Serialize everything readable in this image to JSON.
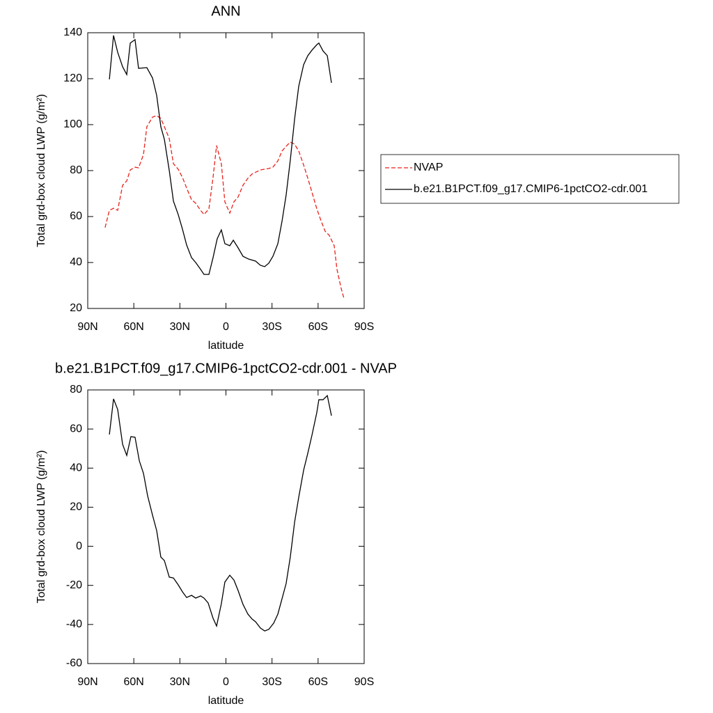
{
  "chart_data": [
    {
      "type": "line",
      "title": "ANN",
      "xlabel": "latitude",
      "ylabel": "Total grd-box cloud LWP (g/m²)",
      "xlim": [
        90,
        -90
      ],
      "ylim": [
        20,
        140
      ],
      "xticks": [
        {
          "value": 90,
          "label": "90N"
        },
        {
          "value": 60,
          "label": "60N"
        },
        {
          "value": 30,
          "label": "30N"
        },
        0,
        {
          "value": -30,
          "label": "30S"
        },
        {
          "value": -60,
          "label": "60S"
        },
        {
          "value": -90,
          "label": "90S"
        }
      ],
      "yticks": [
        20,
        40,
        60,
        80,
        100,
        120,
        140
      ],
      "legend": "right",
      "series": [
        {
          "name": "NVAP",
          "color": "#e8221b",
          "line_style": "dashed",
          "x": [
            78.7,
            75.9,
            73.2,
            70.5,
            67.3,
            64.6,
            62.3,
            59.2,
            56.9,
            53.7,
            51.5,
            47.8,
            45.1,
            42.4,
            40.1,
            36.9,
            34.2,
            31.1,
            28.3,
            25.6,
            22.4,
            19.7,
            16.5,
            14.3,
            11.1,
            8.4,
            6.1,
            3,
            0.7,
            -2.5,
            -5.2,
            -7.9,
            -11.1,
            -14.3,
            -17,
            -22.4,
            -27.9,
            -30.6,
            -33.8,
            -36.5,
            -39.2,
            -41.9,
            -44.7,
            -47.4,
            -50.6,
            -53.3,
            -56,
            -59.2,
            -61.9,
            -64.6,
            -67.3,
            -70.5,
            -72.3,
            -75,
            -76.8
          ],
          "values": [
            55.2,
            62.7,
            63.6,
            62.7,
            73.6,
            75.5,
            80.3,
            81.5,
            81.2,
            87,
            99.1,
            103.3,
            103.9,
            102.7,
            99.1,
            93.9,
            83,
            80.6,
            77,
            72.4,
            67.3,
            65.8,
            62.7,
            60.9,
            63.3,
            77,
            90.9,
            83,
            66.4,
            61.5,
            66.4,
            68.5,
            73.6,
            76.7,
            78.5,
            80.3,
            80.9,
            81.5,
            84.2,
            88.5,
            90.6,
            92.4,
            91.5,
            88.5,
            82.4,
            76.7,
            70.6,
            63.3,
            58.2,
            53.6,
            51.8,
            47.3,
            37,
            28.8,
            24.5
          ]
        },
        {
          "name": "b.e21.B1PCT.f09_g17.CMIP6-1pctCO2-cdr.001",
          "color": "#000000",
          "line_style": "solid",
          "x": [
            75.9,
            73.2,
            70.5,
            67.3,
            64.6,
            62.3,
            59.2,
            56.9,
            51.5,
            47.8,
            45.1,
            42.4,
            40.1,
            36.9,
            34.2,
            31.1,
            28.3,
            25.6,
            22.4,
            19.7,
            16.5,
            14.3,
            11.1,
            8.4,
            5.7,
            3,
            0.7,
            -2.5,
            -4.8,
            -7.9,
            -11.1,
            -14.7,
            -19.3,
            -22.4,
            -25.2,
            -27.9,
            -30.6,
            -33.8,
            -36.5,
            -39.2,
            -41.9,
            -44.7,
            -47.4,
            -50.6,
            -53.3,
            -56,
            -59.2,
            -60.5,
            -63.2,
            -66,
            -68.7
          ],
          "values": [
            119.7,
            138.8,
            131.5,
            125.2,
            121.8,
            135.5,
            137,
            124.5,
            124.8,
            120.3,
            112.7,
            99.1,
            93.6,
            80,
            66.7,
            60.9,
            54.5,
            47.6,
            42.1,
            40,
            37,
            34.8,
            34.8,
            42.1,
            50.3,
            54.2,
            48.2,
            47.3,
            49.7,
            46.4,
            42.7,
            41.5,
            40.6,
            38.8,
            38.2,
            39.7,
            42.7,
            48.2,
            57.9,
            69.4,
            84.5,
            102.4,
            116.7,
            126.1,
            130,
            132.4,
            134.8,
            135.5,
            132.1,
            130,
            118.2
          ]
        }
      ]
    },
    {
      "type": "line",
      "title": "b.e21.B1PCT.f09_g17.CMIP6-1pctCO2-cdr.001 - NVAP",
      "xlabel": "latitude",
      "ylabel": "Total grd-box cloud LWP (g/m²)",
      "xlim": [
        90,
        -90
      ],
      "ylim": [
        -60,
        80
      ],
      "xticks": [
        {
          "value": 90,
          "label": "90N"
        },
        {
          "value": 60,
          "label": "60N"
        },
        {
          "value": 30,
          "label": "30N"
        },
        0,
        {
          "value": -30,
          "label": "30S"
        },
        {
          "value": -60,
          "label": "60S"
        },
        {
          "value": -90,
          "label": "90S"
        }
      ],
      "yticks": [
        -60,
        -40,
        -20,
        0,
        20,
        40,
        60,
        80
      ],
      "series": [
        {
          "color": "#000000",
          "line_style": "solid",
          "x": [
            75.9,
            73.2,
            70.5,
            67.3,
            64.6,
            61.9,
            59.2,
            56.4,
            53.7,
            51,
            47.8,
            45.1,
            42.4,
            40.1,
            36.9,
            34.2,
            31.1,
            28.3,
            25.6,
            22.4,
            19.7,
            16.5,
            14.3,
            11.6,
            8.4,
            6.1,
            3,
            0.7,
            -2.5,
            -5.2,
            -7.9,
            -11.1,
            -14.3,
            -17,
            -19.3,
            -22.4,
            -25.2,
            -27.9,
            -31.1,
            -33.8,
            -36.5,
            -39.2,
            -41.9,
            -44.7,
            -47.4,
            -50.6,
            -53.3,
            -56,
            -59.2,
            -60.5,
            -63.2,
            -66,
            -68.7
          ],
          "values": [
            57.2,
            75.4,
            70,
            52.2,
            46.5,
            56.1,
            55.8,
            43.7,
            37.3,
            25.8,
            15.9,
            8,
            -5.5,
            -7.3,
            -15.8,
            -16.2,
            -19.7,
            -23.3,
            -26.2,
            -25.1,
            -26.5,
            -25.4,
            -26.5,
            -29,
            -36.8,
            -40.8,
            -29.4,
            -18.3,
            -14.8,
            -17.3,
            -22.6,
            -29.7,
            -34.7,
            -37.2,
            -38.6,
            -41.8,
            -43.3,
            -42.5,
            -39.3,
            -34.7,
            -26.9,
            -19,
            -5.5,
            12.3,
            25.1,
            39,
            47.6,
            56.8,
            68.6,
            75,
            75,
            77.1,
            66.8
          ]
        }
      ]
    }
  ]
}
